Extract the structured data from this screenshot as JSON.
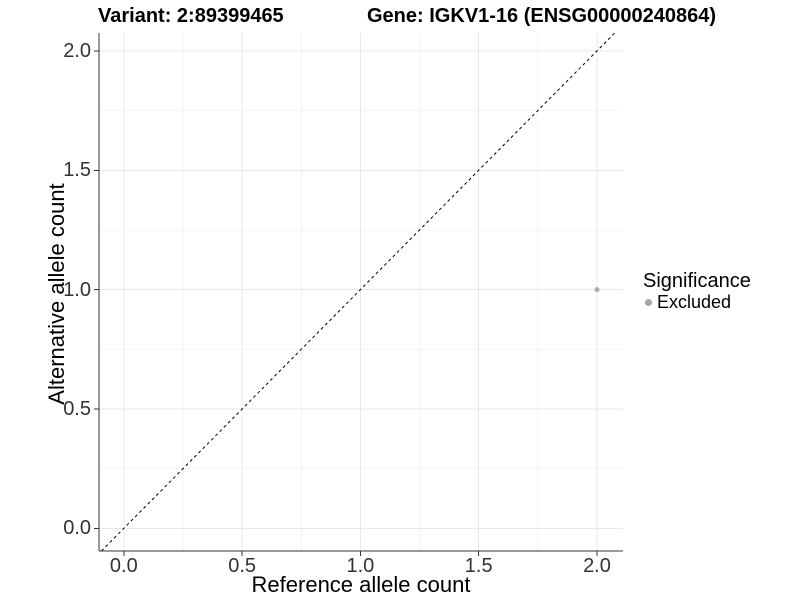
{
  "page": {
    "background": "#ffffff"
  },
  "chart_data": {
    "type": "scatter",
    "title_variant": "Variant: 2:89399465",
    "title_gene": "Gene: IGKV1-16 (ENSG00000240864)",
    "xlabel": "Reference allele count",
    "ylabel": "Alternative allele count",
    "xlim": [
      -0.105,
      2.11
    ],
    "ylim": [
      -0.095,
      2.075
    ],
    "x_ticks": [
      0,
      0.5,
      1,
      1.5,
      2
    ],
    "x_tick_labels": [
      "0.0",
      "0.5",
      "1.0",
      "1.5",
      "2.0"
    ],
    "y_ticks": [
      0,
      0.5,
      1,
      1.5,
      2
    ],
    "y_tick_labels": [
      "0.0",
      "0.5",
      "1.0",
      "1.5",
      "2.0"
    ],
    "x_minor_ticks": [
      0.25,
      0.75,
      1.25,
      1.75
    ],
    "y_minor_ticks": [
      0.25,
      0.75,
      1.25,
      1.75
    ],
    "grid": "major+minor",
    "legend_position": "right",
    "identity_line": {
      "slope": 1,
      "intercept": 0,
      "style": "dashed",
      "color": "#000000"
    },
    "points": [
      {
        "x": 2.0,
        "y": 1.0,
        "significance": "Excluded",
        "color": "#acacac",
        "radius": 2.5
      }
    ],
    "legend": {
      "title": "Significance",
      "items": [
        {
          "label": "Excluded",
          "color": "#a6a6a6"
        }
      ]
    },
    "style": {
      "axis_color": "#333333",
      "grid_major_color": "#e8e8e8",
      "grid_minor_color": "#f4f4f4",
      "tick_label_color": "#333333",
      "text_color": "#000000",
      "background": "#ffffff"
    }
  }
}
